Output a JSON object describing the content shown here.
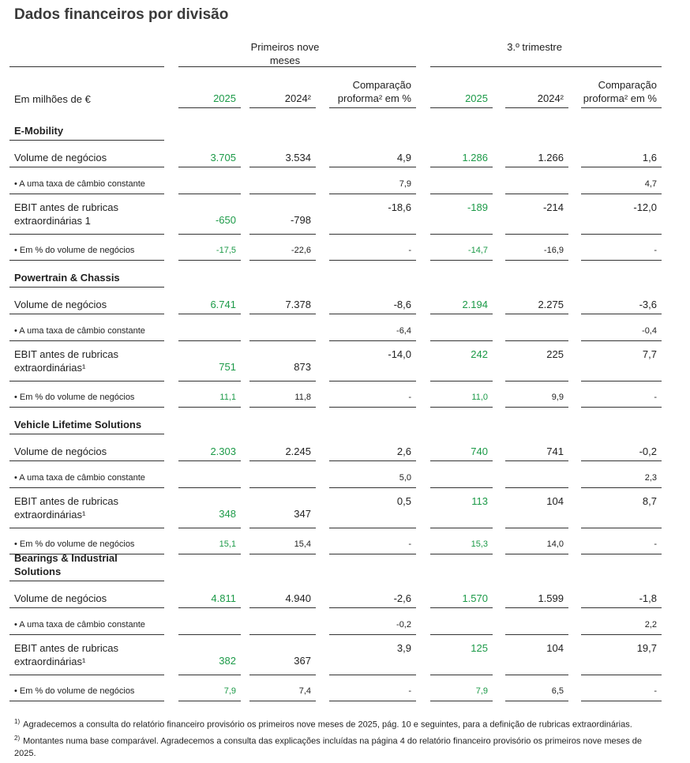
{
  "title": "Dados financeiros por divisão",
  "header": {
    "group1": "Primeiros nove meses",
    "group2": "3.º trimestre",
    "unit": "Em milhões de €",
    "columns": [
      "2025",
      "2024²",
      "Comparação proforma² em %",
      "2025",
      "2024²",
      "Comparação proforma² em %"
    ]
  },
  "sections": [
    {
      "name": "E-Mobility",
      "rows": [
        {
          "label": "Volume de negócios",
          "values": [
            "3.705",
            "3.534",
            "4,9",
            "1.286",
            "1.266",
            "1,6"
          ]
        },
        {
          "label": "• A uma taxa de câmbio constante",
          "values": [
            null,
            null,
            "7,9",
            null,
            null,
            "4,7"
          ]
        },
        {
          "label": "EBIT antes de rubricas extraordinárias 1",
          "values": [
            "-650",
            "-798",
            "-18,6",
            "-189",
            "-214",
            "-12,0"
          ]
        },
        {
          "label": "• Em % do volume de negócios",
          "values": [
            "-17,5",
            "-22,6",
            "-",
            "-14,7",
            "-16,9",
            "-"
          ]
        }
      ]
    },
    {
      "name": "Powertrain & Chassis",
      "rows": [
        {
          "label": "Volume de negócios",
          "values": [
            "6.741",
            "7.378",
            "-8,6",
            "2.194",
            "2.275",
            "-3,6"
          ]
        },
        {
          "label": "• A uma taxa de câmbio constante",
          "values": [
            null,
            null,
            "-6,4",
            null,
            null,
            "-0,4"
          ]
        },
        {
          "label": "EBIT antes de rubricas extraordinárias¹",
          "values": [
            "751",
            "873",
            "-14,0",
            "242",
            "225",
            "7,7"
          ]
        },
        {
          "label": "• Em % do volume de negócios",
          "values": [
            "11,1",
            "11,8",
            "-",
            "11,0",
            "9,9",
            "-"
          ]
        }
      ]
    },
    {
      "name": "Vehicle Lifetime Solutions",
      "rows": [
        {
          "label": "Volume de negócios",
          "values": [
            "2.303",
            "2.245",
            "2,6",
            "740",
            "741",
            "-0,2"
          ]
        },
        {
          "label": "• A uma taxa de câmbio constante",
          "values": [
            null,
            null,
            "5,0",
            null,
            null,
            "2,3"
          ]
        },
        {
          "label": "EBIT antes de rubricas extraordinárias¹",
          "values": [
            "348",
            "347",
            "0,5",
            "113",
            "104",
            "8,7"
          ]
        },
        {
          "label": "• Em % do volume de negócios",
          "values": [
            "15,1",
            "15,4",
            "-",
            "15,3",
            "14,0",
            "-"
          ]
        }
      ]
    },
    {
      "name": "Bearings & Industrial Solutions",
      "rows": [
        {
          "label": "Volume de negócios",
          "values": [
            "4.811",
            "4.940",
            "-2,6",
            "1.570",
            "1.599",
            "-1,8"
          ]
        },
        {
          "label": "• A uma taxa de câmbio constante",
          "values": [
            null,
            null,
            "-0,2",
            null,
            null,
            "2,2"
          ]
        },
        {
          "label": "EBIT antes de rubricas extraordinárias¹",
          "values": [
            "382",
            "367",
            "3,9",
            "125",
            "104",
            "19,7"
          ]
        },
        {
          "label": "• Em % do volume de negócios",
          "values": [
            "7,9",
            "7,4",
            "-",
            "7,9",
            "6,5",
            "-"
          ]
        }
      ]
    }
  ],
  "footnotes": [
    {
      "marker": "1)",
      "text": "Agradecemos a consulta do relatório financeiro provisório os primeiros nove meses de 2025, pág. 10 e seguintes, para a definição de rubricas extraordinárias."
    },
    {
      "marker": "2)",
      "text": "Montantes numa base comparável. Agradecemos a consulta das explicações incluídas na página 4 do relatório financeiro provisório os primeiros nove meses de 2025."
    }
  ]
}
